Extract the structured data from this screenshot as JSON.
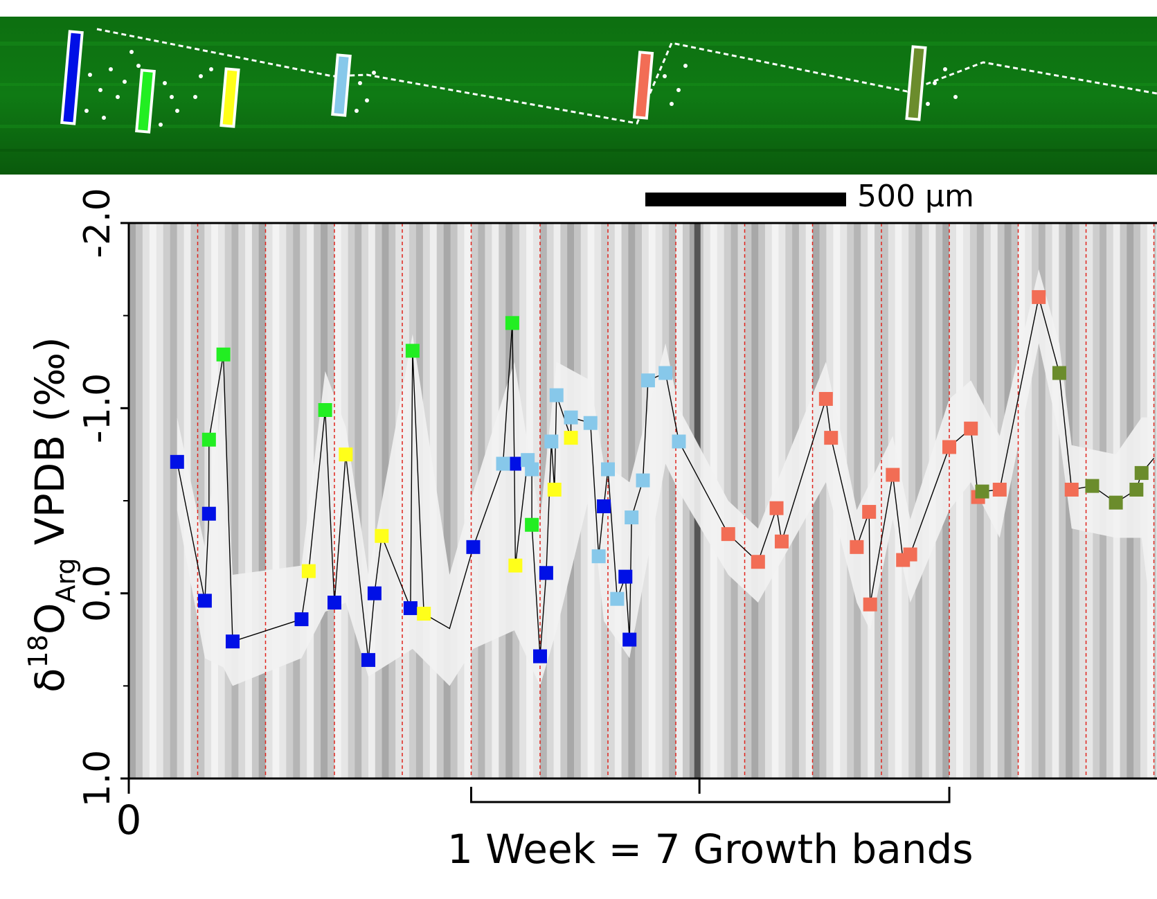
{
  "colors": {
    "dark_blue": "#0010e6",
    "green": "#22ee22",
    "yellow": "#ffff1a",
    "light_blue": "#87c8ea",
    "salmon": "#f26d55",
    "olive": "#6b8c2c",
    "band_lines": "#e0241c",
    "envelope": "#f2f2f2",
    "micrograph_green": "#0e6a12"
  },
  "scalebar": {
    "label": "500 µm"
  },
  "axis": {
    "ylabel_main": "δ",
    "ylabel_sup": "18",
    "ylabel_O": "O",
    "ylabel_sub": "Arg",
    "ylabel_rest": " VPDB (‰)",
    "x_tick_0": "0",
    "bracket_label": "1 Week = 7 Growth bands"
  },
  "chart_data": {
    "type": "scatter",
    "title": "",
    "xlabel": "",
    "ylabel": "δ18OArg VPDB (‰)",
    "xlim": [
      0,
      100
    ],
    "ylim": [
      1.0,
      -2.0
    ],
    "y_inverted": true,
    "yticks": [
      {
        "value": -2.0,
        "label": "-2.0"
      },
      {
        "value": -1.0,
        "label": "-1.0"
      },
      {
        "value": 0.0,
        "label": "0.0"
      },
      {
        "value": 1.0,
        "label": "1.0"
      }
    ],
    "xticks": [
      {
        "value": 0,
        "label": "0"
      },
      {
        "value": 55.5,
        "label": ""
      }
    ],
    "growth_band_lines": [
      0,
      6.7,
      13.3,
      20.0,
      26.6,
      33.3,
      40.0,
      46.6,
      53.2,
      59.9,
      66.5,
      73.2,
      79.8,
      86.5,
      93.1,
      99.7
    ],
    "bracket": {
      "start": 33.3,
      "end": 79.8,
      "label": "1 Week = 7 Growth bands"
    },
    "series": [
      {
        "name": "dark blue",
        "color": "#0010e6",
        "points": [
          [
            4.7,
            -0.71
          ],
          [
            7.4,
            0.04
          ],
          [
            7.8,
            -0.43
          ],
          [
            10.1,
            0.26
          ],
          [
            16.8,
            0.14
          ],
          [
            20.0,
            0.05
          ],
          [
            23.3,
            0.36
          ],
          [
            23.9,
            0.0
          ],
          [
            27.4,
            0.08
          ],
          [
            33.5,
            -0.25
          ],
          [
            37.5,
            -0.7
          ],
          [
            40.0,
            0.34
          ],
          [
            40.6,
            -0.11
          ],
          [
            46.2,
            -0.47
          ],
          [
            48.3,
            -0.09
          ],
          [
            48.7,
            0.25
          ]
        ]
      },
      {
        "name": "green",
        "color": "#22ee22",
        "points": [
          [
            7.8,
            -0.83
          ],
          [
            9.2,
            -1.29
          ],
          [
            19.1,
            -0.99
          ],
          [
            27.6,
            -1.31
          ],
          [
            37.3,
            -1.46
          ],
          [
            39.2,
            -0.37
          ]
        ]
      },
      {
        "name": "yellow",
        "color": "#ffff1a",
        "points": [
          [
            17.5,
            -0.12
          ],
          [
            21.1,
            -0.75
          ],
          [
            24.6,
            -0.31
          ],
          [
            28.7,
            0.11
          ],
          [
            37.6,
            -0.15
          ],
          [
            41.4,
            -0.56
          ],
          [
            43.0,
            -0.84
          ]
        ]
      },
      {
        "name": "light blue",
        "color": "#87c8ea",
        "points": [
          [
            36.4,
            -0.7
          ],
          [
            38.8,
            -0.72
          ],
          [
            39.2,
            -0.67
          ],
          [
            41.1,
            -0.82
          ],
          [
            41.6,
            -1.07
          ],
          [
            43.0,
            -0.95
          ],
          [
            44.9,
            -0.92
          ],
          [
            45.7,
            -0.2
          ],
          [
            46.6,
            -0.67
          ],
          [
            47.5,
            0.03
          ],
          [
            48.9,
            -0.41
          ],
          [
            50.0,
            -0.61
          ],
          [
            50.5,
            -1.15
          ],
          [
            52.2,
            -1.19
          ],
          [
            53.5,
            -0.82
          ]
        ]
      },
      {
        "name": "salmon",
        "color": "#f26d55",
        "points": [
          [
            58.3,
            -0.32
          ],
          [
            61.2,
            -0.17
          ],
          [
            63.0,
            -0.46
          ],
          [
            63.5,
            -0.28
          ],
          [
            67.8,
            -1.05
          ],
          [
            68.3,
            -0.84
          ],
          [
            70.8,
            -0.25
          ],
          [
            72.0,
            -0.44
          ],
          [
            72.1,
            0.06
          ],
          [
            74.3,
            -0.64
          ],
          [
            75.3,
            -0.18
          ],
          [
            76.0,
            -0.21
          ],
          [
            79.8,
            -0.79
          ],
          [
            81.9,
            -0.89
          ],
          [
            82.6,
            -0.52
          ],
          [
            84.7,
            -0.56
          ],
          [
            88.5,
            -1.6
          ],
          [
            91.7,
            -0.56
          ]
        ]
      },
      {
        "name": "olive",
        "color": "#6b8c2c",
        "points": [
          [
            83.0,
            -0.55
          ],
          [
            90.5,
            -1.19
          ],
          [
            93.7,
            -0.58
          ],
          [
            96.0,
            -0.49
          ],
          [
            98.0,
            -0.56
          ],
          [
            98.5,
            -0.65
          ]
        ]
      }
    ],
    "connecting_line": [
      [
        4.7,
        -0.71
      ],
      [
        7.4,
        0.04
      ],
      [
        7.8,
        -0.43
      ],
      [
        7.8,
        -0.83
      ],
      [
        9.2,
        -1.29
      ],
      [
        10.1,
        0.26
      ],
      [
        16.8,
        0.14
      ],
      [
        17.5,
        -0.12
      ],
      [
        19.1,
        -0.99
      ],
      [
        20.0,
        0.05
      ],
      [
        21.1,
        -0.75
      ],
      [
        23.3,
        0.36
      ],
      [
        23.9,
        0.0
      ],
      [
        24.6,
        -0.31
      ],
      [
        27.4,
        0.08
      ],
      [
        27.6,
        -1.31
      ],
      [
        28.7,
        0.11
      ],
      [
        31.2,
        0.19
      ],
      [
        33.5,
        -0.25
      ],
      [
        36.4,
        -0.7
      ],
      [
        37.3,
        -1.46
      ],
      [
        37.5,
        -0.7
      ],
      [
        37.6,
        -0.15
      ],
      [
        38.8,
        -0.72
      ],
      [
        39.2,
        -0.67
      ],
      [
        39.2,
        -0.37
      ],
      [
        40.0,
        0.34
      ],
      [
        40.6,
        -0.11
      ],
      [
        41.1,
        -0.82
      ],
      [
        41.4,
        -0.56
      ],
      [
        41.6,
        -1.07
      ],
      [
        43.0,
        -0.84
      ],
      [
        43.0,
        -0.95
      ],
      [
        44.9,
        -0.92
      ],
      [
        45.7,
        -0.2
      ],
      [
        46.2,
        -0.47
      ],
      [
        46.6,
        -0.67
      ],
      [
        47.5,
        0.03
      ],
      [
        48.3,
        -0.09
      ],
      [
        48.7,
        0.25
      ],
      [
        48.9,
        -0.41
      ],
      [
        50.0,
        -0.61
      ],
      [
        50.5,
        -1.15
      ],
      [
        52.2,
        -1.19
      ],
      [
        53.5,
        -0.82
      ],
      [
        58.3,
        -0.32
      ],
      [
        61.2,
        -0.17
      ],
      [
        63.0,
        -0.46
      ],
      [
        63.5,
        -0.28
      ],
      [
        67.8,
        -1.05
      ],
      [
        68.3,
        -0.84
      ],
      [
        70.8,
        -0.25
      ],
      [
        72.0,
        -0.44
      ],
      [
        72.1,
        0.06
      ],
      [
        74.3,
        -0.64
      ],
      [
        75.3,
        -0.18
      ],
      [
        76.0,
        -0.21
      ],
      [
        79.8,
        -0.79
      ],
      [
        81.9,
        -0.89
      ],
      [
        82.6,
        -0.52
      ],
      [
        83.0,
        -0.55
      ],
      [
        84.7,
        -0.56
      ],
      [
        88.5,
        -1.6
      ],
      [
        90.5,
        -1.19
      ],
      [
        91.7,
        -0.56
      ],
      [
        93.7,
        -0.58
      ],
      [
        96.0,
        -0.49
      ],
      [
        98.0,
        -0.56
      ],
      [
        98.5,
        -0.65
      ],
      [
        99.7,
        -0.73
      ]
    ],
    "envelope": [
      [
        4.7,
        -0.95,
        -0.45
      ],
      [
        7.4,
        -0.25,
        0.35
      ],
      [
        9.2,
        -1.1,
        0.4
      ],
      [
        10.1,
        -0.1,
        0.5
      ],
      [
        16.8,
        -0.15,
        0.35
      ],
      [
        19.1,
        -1.2,
        0.1
      ],
      [
        21.1,
        -0.9,
        0.05
      ],
      [
        23.3,
        -0.1,
        0.45
      ],
      [
        27.6,
        -1.4,
        0.3
      ],
      [
        31.2,
        -0.1,
        0.5
      ],
      [
        33.5,
        -0.55,
        0.3
      ],
      [
        37.5,
        -1.25,
        0.2
      ],
      [
        40.0,
        -0.4,
        0.5
      ],
      [
        41.6,
        -1.25,
        0.2
      ],
      [
        44.9,
        -1.15,
        -0.55
      ],
      [
        46.2,
        -0.7,
        0.15
      ],
      [
        48.7,
        -0.6,
        0.35
      ],
      [
        52.2,
        -1.35,
        -0.7
      ],
      [
        53.5,
        -1.0,
        -0.55
      ],
      [
        58.3,
        -0.5,
        -0.1
      ],
      [
        61.2,
        -0.35,
        0.05
      ],
      [
        67.8,
        -1.25,
        -0.6
      ],
      [
        70.8,
        -0.45,
        0.05
      ],
      [
        72.1,
        -0.6,
        0.2
      ],
      [
        74.3,
        -0.85,
        -0.4
      ],
      [
        76.0,
        -0.4,
        0.05
      ],
      [
        79.8,
        -1.05,
        -0.45
      ],
      [
        81.9,
        -1.15,
        -0.6
      ],
      [
        84.7,
        -0.85,
        -0.3
      ],
      [
        88.5,
        -1.75,
        -1.35
      ],
      [
        90.5,
        -1.35,
        -0.85
      ],
      [
        91.7,
        -0.8,
        -0.35
      ],
      [
        96.0,
        -0.75,
        -0.3
      ],
      [
        98.5,
        -0.95,
        -0.3
      ],
      [
        99.7,
        -0.95,
        0.25
      ]
    ]
  }
}
